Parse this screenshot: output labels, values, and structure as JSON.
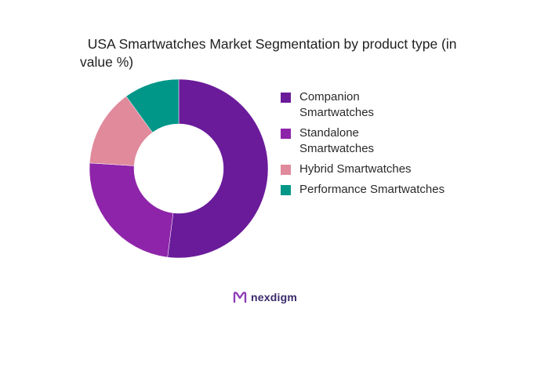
{
  "chart_data": {
    "type": "pie",
    "title": "USA Smartwatches Market Segmentation by product type (in value %)",
    "donut": true,
    "legend_position": "right",
    "categories": [
      "Companion Smartwatches",
      "Standalone Smartwatches",
      "Hybrid Smartwatches",
      "Performance Smartwatches"
    ],
    "values": [
      52,
      24,
      14,
      10
    ],
    "colors": [
      "#6a1b9a",
      "#8e24aa",
      "#e08a9c",
      "#009688"
    ]
  },
  "legend": {
    "items": [
      {
        "label": "Companion\nSmartwatches",
        "color": "#6a1b9a"
      },
      {
        "label": "Standalone\nSmartwatches",
        "color": "#8e24aa"
      },
      {
        "label": "Hybrid Smartwatches",
        "color": "#e08a9c"
      },
      {
        "label": "Performance Smartwatches",
        "color": "#009688"
      }
    ]
  },
  "brand": {
    "name": "nexdigm",
    "logo_icon": "nexdigm-logo-icon",
    "color": "#3b2a6b"
  }
}
